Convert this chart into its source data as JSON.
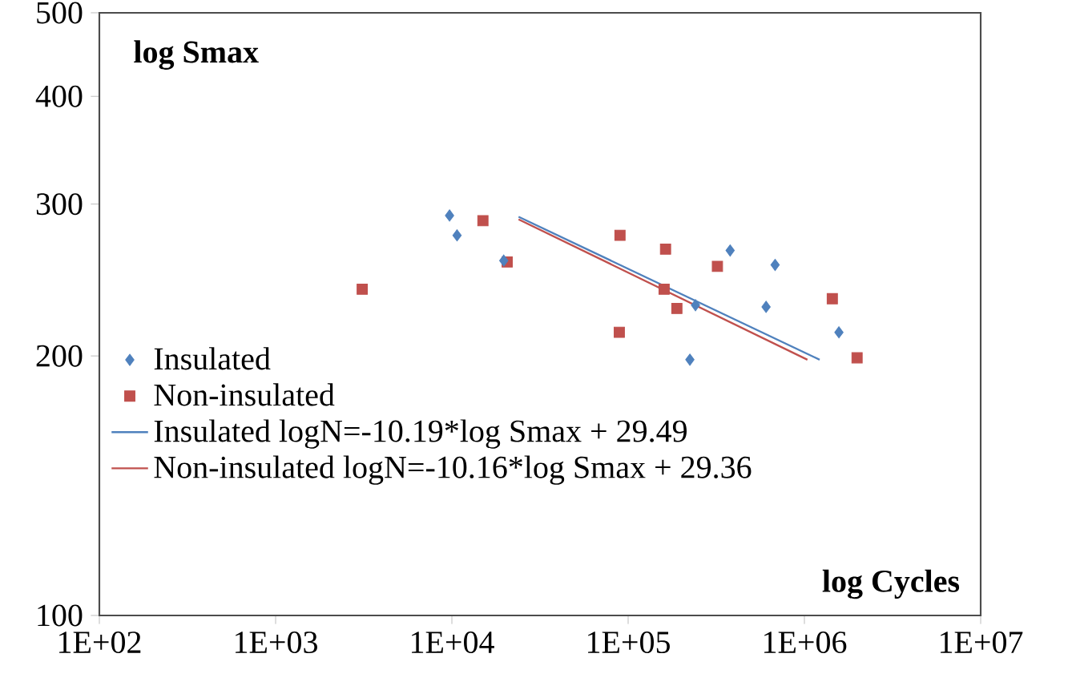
{
  "chart_data": {
    "type": "scatter",
    "xlabel": "log Cycles",
    "ylabel": "log Smax",
    "log": "xy",
    "xlim": [
      100,
      10000000
    ],
    "ylim": [
      100,
      500
    ],
    "xticks": [
      {
        "value": 100,
        "label": "1E+02"
      },
      {
        "value": 1000,
        "label": "1E+03"
      },
      {
        "value": 10000,
        "label": "1E+04"
      },
      {
        "value": 100000,
        "label": "1E+05"
      },
      {
        "value": 1000000,
        "label": "1E+06"
      },
      {
        "value": 10000000,
        "label": "1E+07"
      }
    ],
    "yticks": [
      100,
      200,
      300,
      400,
      500
    ],
    "legend": "left",
    "grid": false,
    "series": [
      {
        "name": "Insulated",
        "marker": "diamond",
        "color": "#4f81bd",
        "x": [
          9700,
          10700,
          19700,
          379000,
          682000,
          241000,
          606000,
          1570000,
          224000
        ],
        "values": [
          291,
          276,
          258,
          265,
          255,
          229,
          228,
          213,
          198
        ]
      },
      {
        "name": "Non-insulated",
        "marker": "square",
        "color": "#c0504d",
        "x": [
          3100,
          15000,
          20600,
          89900,
          163000,
          321000,
          160000,
          189000,
          89100,
          1440000,
          1990000
        ],
        "values": [
          239,
          287,
          257,
          276,
          266,
          254,
          239,
          227,
          213,
          233,
          199
        ]
      },
      {
        "name": "Insulated logN=-10.19*log Smax + 29.49",
        "type": "line",
        "marker": "none",
        "line_style": "solid",
        "color": "#4f81bd",
        "x": [
          23900,
          1220000
        ],
        "values": [
          290,
          198
        ]
      },
      {
        "name": "Non-insulated logN=-10.16*log Smax + 29.36",
        "type": "line",
        "marker": "none",
        "line_style": "solid",
        "color": "#c0504d",
        "x": [
          23900,
          1040000
        ],
        "values": [
          288,
          198
        ]
      }
    ]
  }
}
